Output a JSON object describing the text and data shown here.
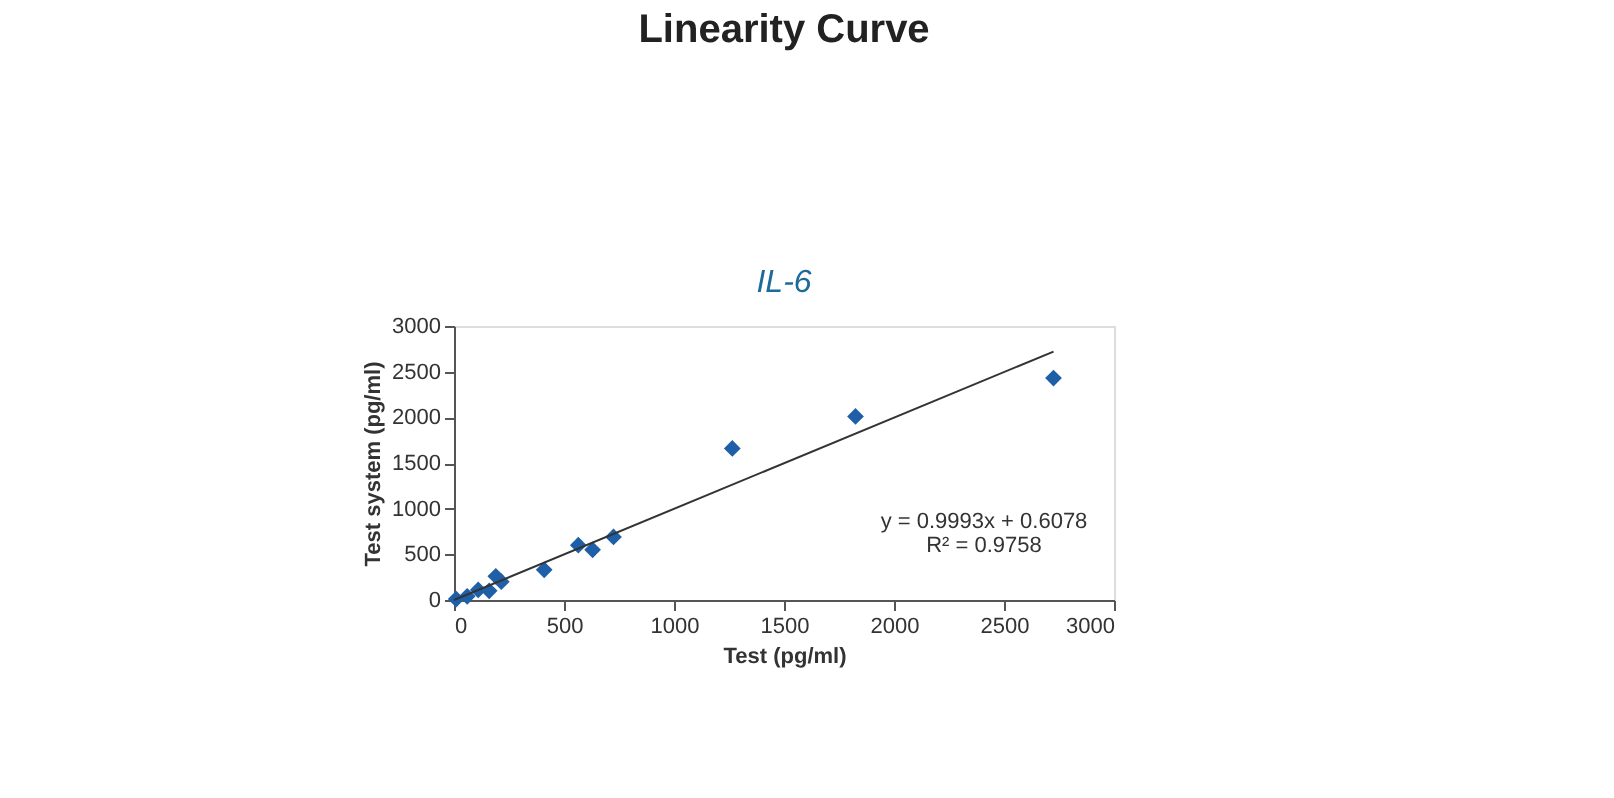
{
  "chart_data": {
    "type": "scatter",
    "title": "Linearity Curve",
    "subtitle": "IL-6",
    "xlabel": "Test (pg/ml)",
    "ylabel": "Test system (pg/ml)",
    "xlim": [
      0,
      3000
    ],
    "xticks": [
      0,
      500,
      1000,
      1500,
      2000,
      2500,
      3000
    ],
    "ylim": [
      0,
      3000
    ],
    "yticks": [
      0,
      500,
      1000,
      1500,
      2000,
      2500,
      3000
    ],
    "grid": false,
    "legend": false,
    "series": [
      {
        "color": "#1f5fa8",
        "marker": "diamond",
        "x": [
          10,
          60,
          110,
          160,
          190,
          215,
          410,
          565,
          630,
          725,
          1265,
          1825,
          2725
        ],
        "values": [
          10,
          40,
          110,
          100,
          260,
          200,
          330,
          600,
          550,
          690,
          1660,
          2010,
          2430
        ]
      },
      {
        "type": "line",
        "color": "#333333",
        "marker": "none",
        "line_style": "solid",
        "x": [
          0,
          2725
        ],
        "values": [
          0,
          2720
        ]
      }
    ],
    "annotations": [
      "y = 0.9993x + 0.6078",
      "R² = 0.9758"
    ]
  }
}
